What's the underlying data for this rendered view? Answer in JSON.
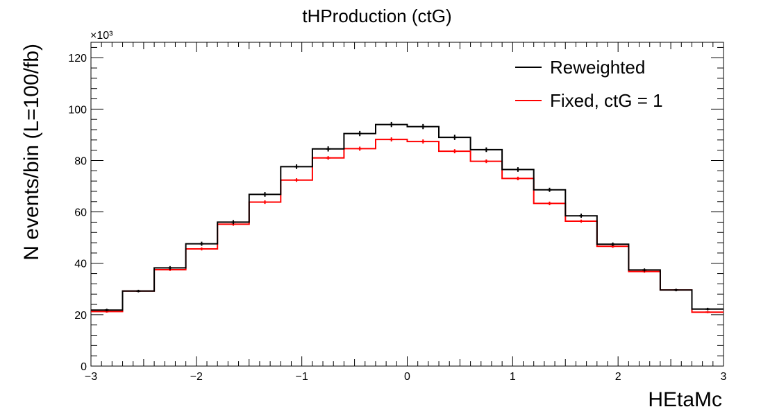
{
  "chart_data": {
    "type": "line",
    "title": "tHProduction (ctG)",
    "xlabel": "HEtaMc",
    "ylabel": "N events/bin (L=100/fb)",
    "y_multiplier": "×10³",
    "xlim": [
      -3,
      3
    ],
    "ylim": [
      0,
      126
    ],
    "x_ticks": [
      -3,
      -2,
      -1,
      0,
      1,
      2,
      3
    ],
    "x_tick_labels": [
      "−3",
      "−2",
      "−1",
      "0",
      "1",
      "2",
      "3"
    ],
    "y_ticks": [
      0,
      20,
      40,
      60,
      80,
      100,
      120
    ],
    "y_tick_labels": [
      "0",
      "20",
      "40",
      "60",
      "80",
      "100",
      "120"
    ],
    "bin_edges": [
      -3.0,
      -2.7,
      -2.4,
      -2.1,
      -1.8,
      -1.5,
      -1.2,
      -0.9,
      -0.6,
      -0.3,
      0.0,
      0.3,
      0.6,
      0.9,
      1.2,
      1.5,
      1.8,
      2.1,
      2.4,
      2.7,
      3.0
    ],
    "legend_position": "top-right",
    "series": [
      {
        "name": "Reweighted",
        "color": "#000000",
        "values": [
          21.8,
          29.2,
          38.2,
          47.6,
          56.0,
          66.8,
          77.6,
          84.5,
          90.5,
          94.0,
          93.2,
          89.0,
          84.2,
          76.5,
          68.6,
          58.5,
          47.4,
          37.4,
          29.6,
          22.2
        ],
        "errors": [
          0.5,
          0.5,
          0.7,
          0.8,
          0.8,
          0.9,
          0.9,
          1.0,
          1.0,
          1.0,
          1.0,
          1.0,
          0.9,
          0.9,
          0.8,
          0.8,
          0.7,
          0.6,
          0.5,
          0.5
        ]
      },
      {
        "name": "Fixed, ctG = 1",
        "color": "#ff0000",
        "values": [
          21.2,
          29.2,
          37.5,
          45.6,
          55.2,
          63.8,
          72.4,
          81.0,
          84.6,
          88.2,
          87.4,
          83.6,
          79.7,
          73.0,
          63.3,
          56.4,
          46.6,
          36.8,
          29.6,
          21.0
        ],
        "errors": [
          0.4,
          0.4,
          0.5,
          0.6,
          0.6,
          0.7,
          0.7,
          0.7,
          0.8,
          0.8,
          0.8,
          0.8,
          0.7,
          0.7,
          0.7,
          0.6,
          0.6,
          0.5,
          0.4,
          0.4
        ]
      }
    ]
  }
}
